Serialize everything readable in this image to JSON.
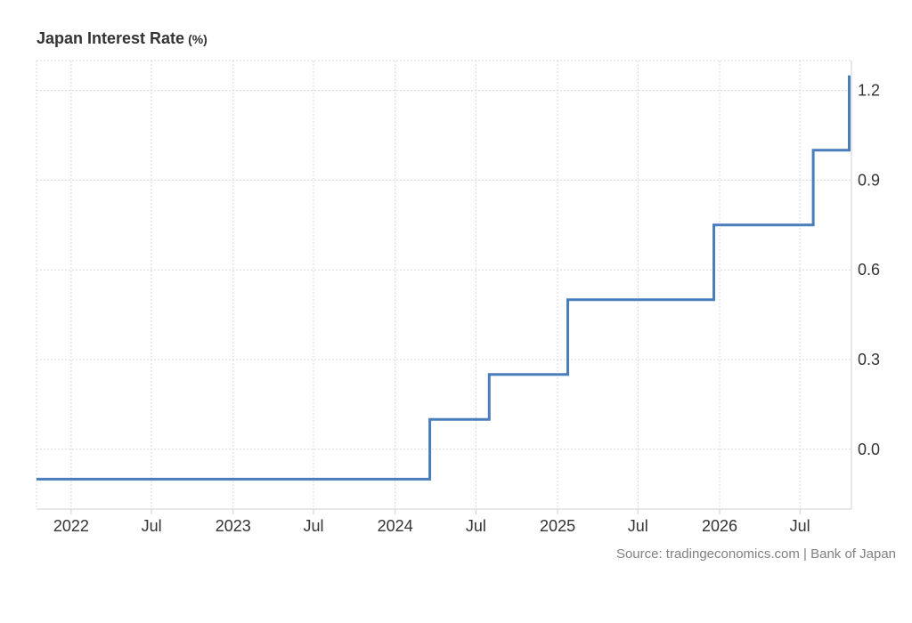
{
  "title": "Japan Interest Rate",
  "title_unit": "(%)",
  "source": "Source: tradingeconomics.com | Bank of Japan",
  "colors": {
    "line": "#4a7ebb",
    "grid": "#d9d9d9",
    "axis": "#d0d0d0",
    "text": "#333333",
    "source_text": "#808080"
  },
  "chart_data": {
    "type": "line",
    "step": true,
    "title": "Japan Interest Rate",
    "ylabel": "",
    "xlabel": "",
    "ylim": [
      -0.2,
      1.3
    ],
    "xlim": [
      "2021-10-15",
      "2026-10-25"
    ],
    "grid": true,
    "y_axis_position": "right",
    "y_ticks": [
      "0.0",
      "0.3",
      "0.6",
      "0.9",
      "1.2"
    ],
    "y_tick_values": [
      0.0,
      0.3,
      0.6,
      0.9,
      1.2
    ],
    "x_ticks": [
      {
        "label": "2022",
        "date": "2022-01-01"
      },
      {
        "label": "Jul",
        "date": "2022-07-01"
      },
      {
        "label": "2023",
        "date": "2023-01-01"
      },
      {
        "label": "Jul",
        "date": "2023-07-01"
      },
      {
        "label": "2024",
        "date": "2024-01-01"
      },
      {
        "label": "Jul",
        "date": "2024-07-01"
      },
      {
        "label": "2025",
        "date": "2025-01-01"
      },
      {
        "label": "Jul",
        "date": "2025-07-01"
      },
      {
        "label": "2026",
        "date": "2026-01-01"
      },
      {
        "label": "Jul",
        "date": "2026-07-01"
      }
    ],
    "series": [
      {
        "points": [
          {
            "x": "2021-10-15",
            "y": -0.1
          },
          {
            "x": "2024-03-19",
            "y": 0.1
          },
          {
            "x": "2024-07-31",
            "y": 0.25
          },
          {
            "x": "2025-01-24",
            "y": 0.5
          },
          {
            "x": "2025-12-19",
            "y": 0.75
          },
          {
            "x": "2026-07-31",
            "y": 1.0
          },
          {
            "x": "2026-10-20",
            "y": 1.25
          }
        ]
      }
    ]
  }
}
